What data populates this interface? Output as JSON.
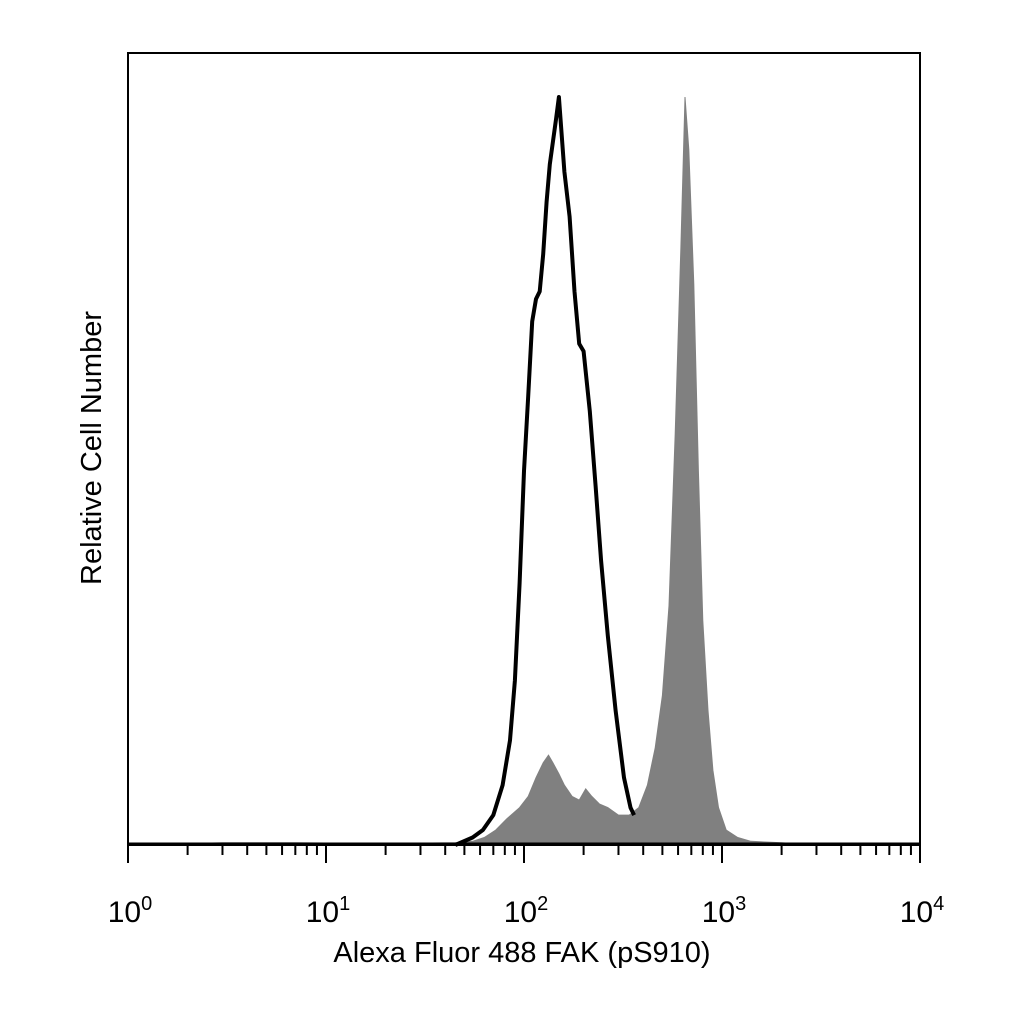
{
  "chart_data": {
    "type": "area",
    "title": "",
    "xlabel": "Alexa Fluor 488 FAK (pS910)",
    "ylabel": "Relative Cell Number",
    "x_scale": "log",
    "xlim": [
      1,
      10000
    ],
    "ylim": [
      0,
      100
    ],
    "x_ticks": [
      {
        "base": "10",
        "exp": "0",
        "value": 1
      },
      {
        "base": "10",
        "exp": "1",
        "value": 10
      },
      {
        "base": "10",
        "exp": "2",
        "value": 100
      },
      {
        "base": "10",
        "exp": "3",
        "value": 1000
      },
      {
        "base": "10",
        "exp": "4",
        "value": 10000
      }
    ],
    "grid": false,
    "legend": "none",
    "series": [
      {
        "style": "filled",
        "color": "#808080",
        "x": [
          1,
          3,
          7,
          20,
          45,
          55,
          63,
          72,
          82,
          95,
          105,
          115,
          125,
          133,
          140,
          150,
          160,
          175,
          190,
          205,
          220,
          240,
          265,
          300,
          340,
          380,
          420,
          460,
          500,
          540,
          580,
          620,
          650,
          680,
          720,
          760,
          800,
          850,
          900,
          960,
          1050,
          1200,
          1400,
          2000,
          2600,
          10000
        ],
        "y": [
          0,
          0.3,
          0.3,
          0.2,
          0.3,
          0.5,
          1,
          2,
          3.5,
          5,
          6.5,
          9,
          11,
          12,
          11,
          9.5,
          8,
          6.5,
          6,
          7.5,
          6.5,
          5.5,
          5,
          4,
          4,
          5,
          8,
          13,
          20,
          32,
          55,
          80,
          100,
          93,
          75,
          50,
          30,
          18,
          10,
          5,
          2,
          1,
          0.5,
          0.3,
          0.1,
          0
        ]
      },
      {
        "style": "outline",
        "color": "#000000",
        "x": [
          45,
          55,
          62,
          70,
          78,
          85,
          90,
          95,
          100,
          105,
          110,
          115,
          120,
          125,
          130,
          135,
          140,
          145,
          150,
          160,
          170,
          180,
          190,
          200,
          215,
          230,
          245,
          265,
          290,
          320,
          345,
          360
        ],
        "y": [
          0,
          1,
          2,
          4,
          8,
          14,
          22,
          35,
          50,
          60,
          70,
          73,
          74,
          79,
          86,
          91,
          94,
          97,
          100,
          90,
          84,
          74,
          67,
          66,
          58,
          48,
          38,
          28,
          18,
          9,
          5,
          4
        ]
      }
    ]
  }
}
